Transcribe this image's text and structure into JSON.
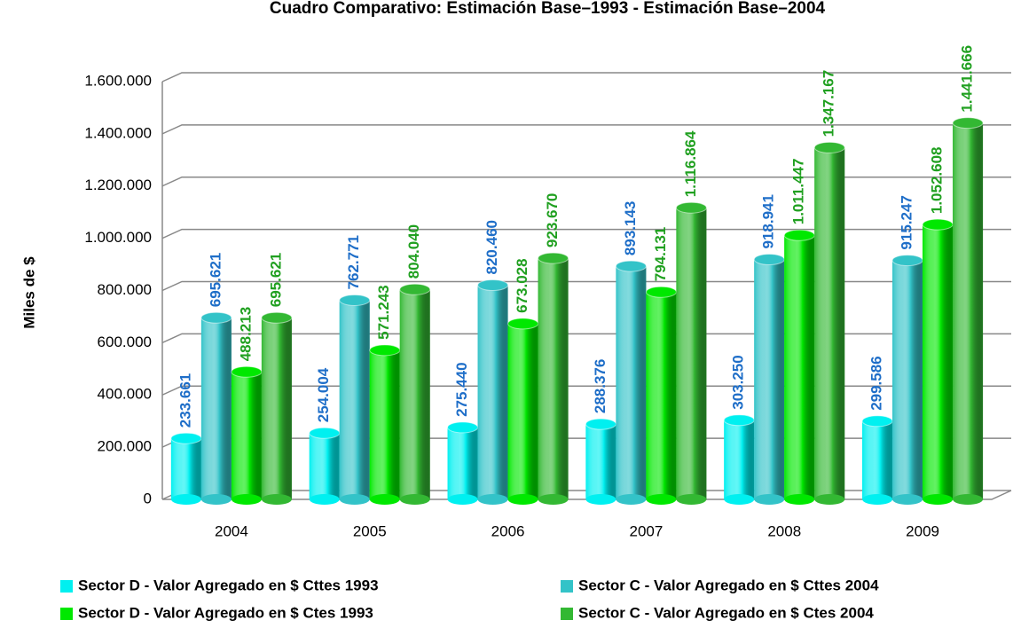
{
  "chart_data": {
    "type": "bar",
    "title": "Cuadro Comparativo: Estimación Base–1993 - Estimación Base–2004",
    "y_label": "Miles de $",
    "categories": [
      "2004",
      "2005",
      "2006",
      "2007",
      "2008",
      "2009"
    ],
    "series": [
      {
        "name": "Sector D - Valor Agregado en $ Cttes 1993",
        "color": "#00f0f0",
        "label_color": "#1e6ec8",
        "values": [
          233661,
          254004,
          275440,
          288376,
          303250,
          299586
        ],
        "value_labels": [
          "233.661",
          "254.004",
          "275.440",
          "288.376",
          "303.250",
          "299.586"
        ]
      },
      {
        "name": "Sector C - Valor Agregado en $ Cttes 2004",
        "color": "#33c3c8",
        "label_color": "#1e6ec8",
        "values": [
          695621,
          762771,
          820460,
          893143,
          918941,
          915247
        ],
        "value_labels": [
          "695.621",
          "762.771",
          "820.460",
          "893.143",
          "918.941",
          "915.247"
        ]
      },
      {
        "name": "Sector D - Valor Agregado en $ Ctes 1993",
        "color": "#00e800",
        "label_color": "#20a020",
        "values": [
          488213,
          571243,
          673028,
          794131,
          1011447,
          1052608
        ],
        "value_labels": [
          "488.213",
          "571.243",
          "673.028",
          "794.131",
          "1.011.447",
          "1.052.608"
        ]
      },
      {
        "name": "Sector C - Valor Agregado en $ Ctes 2004",
        "color": "#33b833",
        "label_color": "#20a020",
        "values": [
          695621,
          804040,
          923670,
          1116864,
          1347167,
          1441666
        ],
        "value_labels": [
          "695.621",
          "804.040",
          "923.670",
          "1.116.864",
          "1.347.167",
          "1.441.666"
        ]
      }
    ],
    "ylim": [
      0,
      1600000
    ],
    "yticks": [
      0,
      {
        "value": 200000,
        "label": "200.000"
      },
      {
        "value": 400000,
        "label": "400.000"
      },
      {
        "value": 600000,
        "label": "600.000"
      },
      {
        "value": 800000,
        "label": "800.000"
      },
      {
        "value": 1000000,
        "label": "1.000.000"
      },
      {
        "value": 1200000,
        "label": "1.200.000"
      },
      {
        "value": 1400000,
        "label": "1.400.000"
      },
      {
        "value": 1600000,
        "label": "1.600.000"
      }
    ],
    "grid": true
  }
}
